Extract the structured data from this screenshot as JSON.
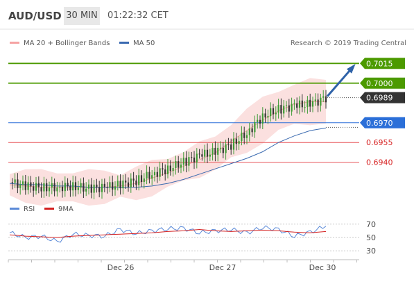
{
  "header": {
    "symbol": "AUD/USD",
    "timeframe": "30 MIN",
    "time": "01:22:32 CET"
  },
  "legend": {
    "bollinger_label": "MA 20 + Bollinger Bands",
    "ma50_label": "MA 50",
    "copyright": "Research © 2019 Trading Central"
  },
  "rsi_legend": {
    "rsi_label": "RSI",
    "ma_label": "9MA"
  },
  "colors": {
    "bollinger": "#f5a3a3",
    "bollinger_fill": "#fbe0df",
    "ma50": "#3a6ab0",
    "resistance": "#4c9a00",
    "support_blue": "#2b6fd8",
    "support_red": "#e8575a",
    "price_tag": "#333333",
    "arrow": "#2e62a8",
    "rsi": "#5b8ad8",
    "rsi_ma": "#d42020"
  },
  "chart_data": [
    {
      "type": "line",
      "title": "AUD/USD",
      "subtitle": "30 MIN",
      "x_ticks": [
        "Dec 26",
        "Dec 27",
        "Dec 30"
      ],
      "levels": [
        {
          "value": 0.7015,
          "label": "0.7015",
          "kind": "resistance"
        },
        {
          "value": 0.7,
          "label": "0.7000",
          "kind": "resistance"
        },
        {
          "value": 0.6989,
          "label": "0.6989",
          "kind": "last-price"
        },
        {
          "value": 0.697,
          "label": "0.6970",
          "kind": "support"
        },
        {
          "value": 0.6955,
          "label": "0.6955",
          "kind": "support"
        },
        {
          "value": 0.694,
          "label": "0.6940",
          "kind": "support"
        }
      ],
      "series": [
        {
          "name": "MA 20 + Bollinger Bands",
          "role": "bollinger",
          "values": [
            0.6923,
            0.6922,
            0.6921,
            0.6921,
            0.6921,
            0.6921,
            0.6921,
            0.6922,
            0.6924,
            0.6928,
            0.6932,
            0.6937,
            0.6942,
            0.6947,
            0.6956,
            0.6964,
            0.6972,
            0.6979,
            0.6984,
            0.6986,
            0.6986
          ]
        },
        {
          "name": "MA 50",
          "values": [
            0.6924,
            0.6923,
            0.6923,
            0.6922,
            0.6922,
            0.6921,
            0.6921,
            0.6921,
            0.6921,
            0.6922,
            0.6924,
            0.6927,
            0.6931,
            0.6935,
            0.6939,
            0.6943,
            0.6948,
            0.6955,
            0.696,
            0.6964,
            0.6966
          ]
        },
        {
          "name": "Price",
          "values": [
            0.6925,
            0.6922,
            0.6921,
            0.6921,
            0.6922,
            0.692,
            0.6921,
            0.6923,
            0.6926,
            0.6931,
            0.6935,
            0.694,
            0.6945,
            0.6948,
            0.6953,
            0.6962,
            0.6975,
            0.698,
            0.6983,
            0.6984,
            0.6989
          ]
        }
      ],
      "ylim": [
        0.6913,
        0.7022
      ]
    },
    {
      "type": "line",
      "title": "RSI",
      "y_ticks": [
        70,
        50,
        30
      ],
      "ylim": [
        25,
        75
      ],
      "series": [
        {
          "name": "RSI",
          "values": [
            57,
            50,
            52,
            44,
            55,
            53,
            52,
            62,
            56,
            60,
            63,
            64,
            57,
            60,
            62,
            57,
            65,
            62,
            52,
            58,
            67
          ]
        },
        {
          "name": "9MA",
          "values": [
            54,
            52,
            51,
            50,
            52,
            53,
            54,
            55,
            56,
            57,
            59,
            60,
            62,
            60,
            59,
            60,
            61,
            60,
            58,
            57,
            59
          ]
        }
      ]
    }
  ]
}
